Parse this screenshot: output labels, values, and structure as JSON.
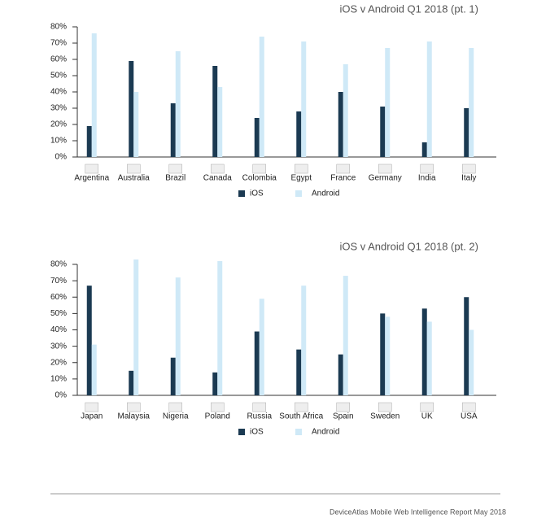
{
  "chart_data": [
    {
      "type": "bar",
      "title": "iOS v Android Q1 2018 (pt. 1)",
      "categories": [
        "Argentina",
        "Australia",
        "Brazil",
        "Canada",
        "Colombia",
        "Egypt",
        "France",
        "Germany",
        "India",
        "Italy"
      ],
      "series": [
        {
          "name": "iOS",
          "color": "#1b3a52",
          "values": [
            19,
            59,
            33,
            56,
            24,
            28,
            40,
            31,
            9,
            30
          ]
        },
        {
          "name": "Android",
          "color": "#cfe9f7",
          "values": [
            76,
            40,
            65,
            43,
            74,
            71,
            57,
            67,
            71,
            67
          ]
        }
      ],
      "ylim": [
        0,
        80
      ],
      "yticks": [
        {
          "value": 0,
          "label": "0%"
        },
        {
          "value": 10,
          "label": "10%"
        },
        {
          "value": 20,
          "label": "20%"
        },
        {
          "value": 30,
          "label": "30%"
        },
        {
          "value": 40,
          "label": "40%"
        },
        {
          "value": 50,
          "label": "50%"
        },
        {
          "value": 60,
          "label": "60%"
        },
        {
          "value": 70,
          "label": "70%"
        },
        {
          "value": 80,
          "label": "80%"
        }
      ],
      "grid": false,
      "legend": "bottom"
    },
    {
      "type": "bar",
      "title": "iOS v Android Q1 2018 (pt. 2)",
      "categories": [
        "Japan",
        "Malaysia",
        "Nigeria",
        "Poland",
        "Russia",
        "South Africa",
        "Spain",
        "Sweden",
        "UK",
        "USA"
      ],
      "series": [
        {
          "name": "iOS",
          "color": "#1b3a52",
          "values": [
            67,
            15,
            23,
            14,
            39,
            28,
            25,
            50,
            53,
            60
          ]
        },
        {
          "name": "Android",
          "color": "#cfe9f7",
          "values": [
            31,
            83,
            72,
            82,
            59,
            67,
            73,
            48,
            45,
            40
          ]
        }
      ],
      "ylim": [
        0,
        80
      ],
      "yticks": [
        {
          "value": 0,
          "label": "0%"
        },
        {
          "value": 10,
          "label": "10%"
        },
        {
          "value": 20,
          "label": "20%"
        },
        {
          "value": 30,
          "label": "30%"
        },
        {
          "value": 40,
          "label": "40%"
        },
        {
          "value": 50,
          "label": "50%"
        },
        {
          "value": 60,
          "label": "60%"
        },
        {
          "value": 70,
          "label": "70%"
        },
        {
          "value": 80,
          "label": "80%"
        }
      ],
      "grid": false,
      "legend": "bottom"
    }
  ],
  "footer": "DeviceAtlas Mobile Web Intelligence Report May 2018"
}
